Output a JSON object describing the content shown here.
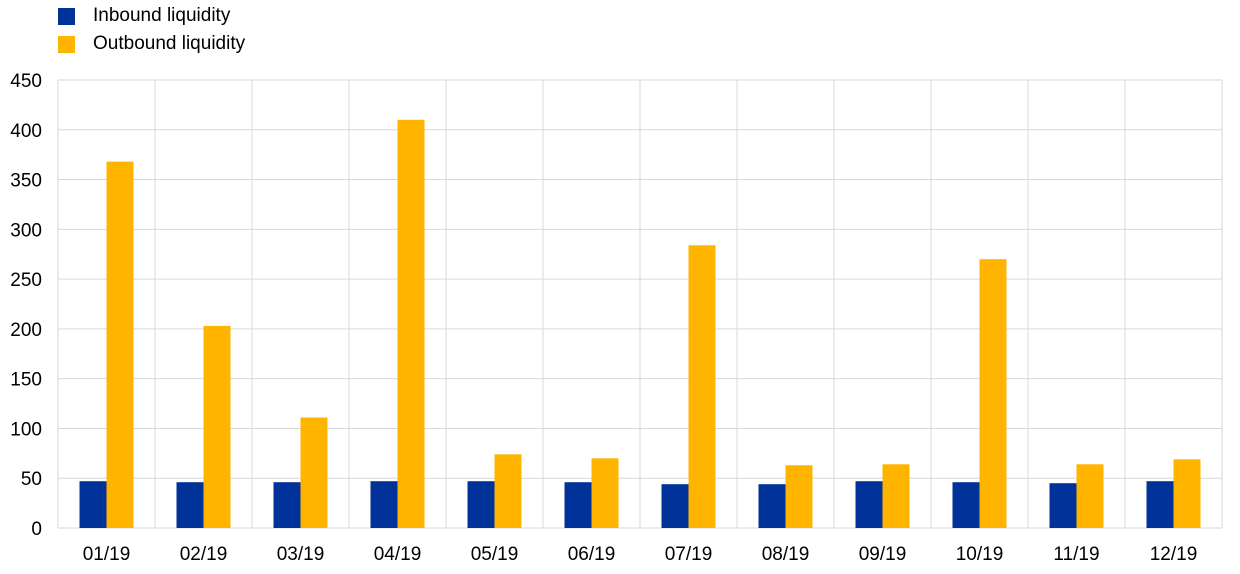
{
  "chart_data": {
    "type": "bar",
    "categories": [
      "01/19",
      "02/19",
      "03/19",
      "04/19",
      "05/19",
      "06/19",
      "07/19",
      "08/19",
      "09/19",
      "10/19",
      "11/19",
      "12/19"
    ],
    "series": [
      {
        "name": "Inbound liquidity",
        "color": "#003299",
        "values": [
          47,
          46,
          46,
          47,
          47,
          46,
          44,
          44,
          47,
          46,
          45,
          47
        ]
      },
      {
        "name": "Outbound liquidity",
        "color": "#FFB400",
        "values": [
          368,
          203,
          111,
          410,
          74,
          70,
          284,
          63,
          64,
          270,
          64,
          69
        ]
      }
    ],
    "ylim": [
      0,
      450
    ],
    "yticks": [
      0,
      50,
      100,
      150,
      200,
      250,
      300,
      350,
      400,
      450
    ],
    "grid": true,
    "legend": "top-left",
    "title": "",
    "xlabel": "",
    "ylabel": ""
  }
}
